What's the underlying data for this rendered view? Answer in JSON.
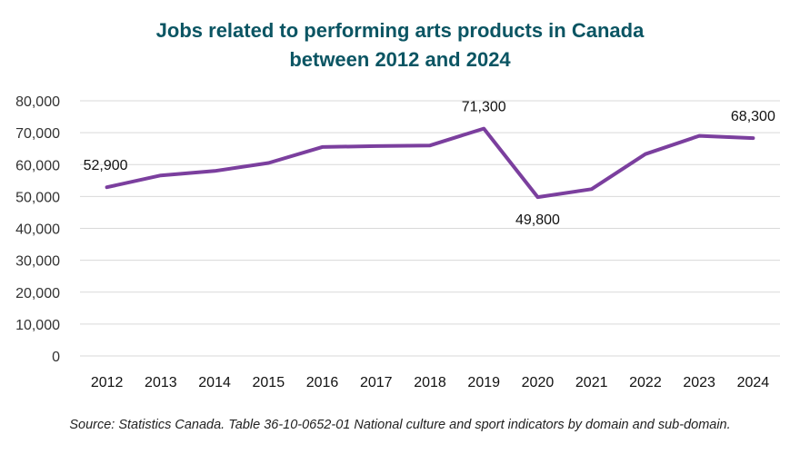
{
  "chart_data": {
    "type": "line",
    "title": [
      "Jobs related to performing arts products in Canada",
      "between 2012 and 2024"
    ],
    "xlabel": "",
    "ylabel": "",
    "x": [
      "2012",
      "2013",
      "2014",
      "2015",
      "2016",
      "2017",
      "2018",
      "2019",
      "2020",
      "2021",
      "2022",
      "2023",
      "2024"
    ],
    "series": [
      {
        "name": "Jobs",
        "values": [
          52900,
          56600,
          58000,
          60500,
          65500,
          65800,
          66000,
          71300,
          49800,
          52300,
          63300,
          69000,
          68300
        ]
      }
    ],
    "ylim": [
      0,
      80000
    ],
    "yticks": [
      0,
      10000,
      20000,
      30000,
      40000,
      50000,
      60000,
      70000,
      80000
    ],
    "ytick_labels": [
      "0",
      "10,000",
      "20,000",
      "30,000",
      "40,000",
      "50,000",
      "60,000",
      "70,000",
      "80,000"
    ],
    "grid": true,
    "line_color": "#7b3f9e",
    "annotations": [
      {
        "x": "2012",
        "text": "52,900"
      },
      {
        "x": "2019",
        "text": "71,300"
      },
      {
        "x": "2020",
        "text": "49,800"
      },
      {
        "x": "2024",
        "text": "68,300"
      }
    ]
  },
  "source": "Source: Statistics Canada. Table 36-10-0652-01  National culture and sport indicators by domain and sub-domain."
}
